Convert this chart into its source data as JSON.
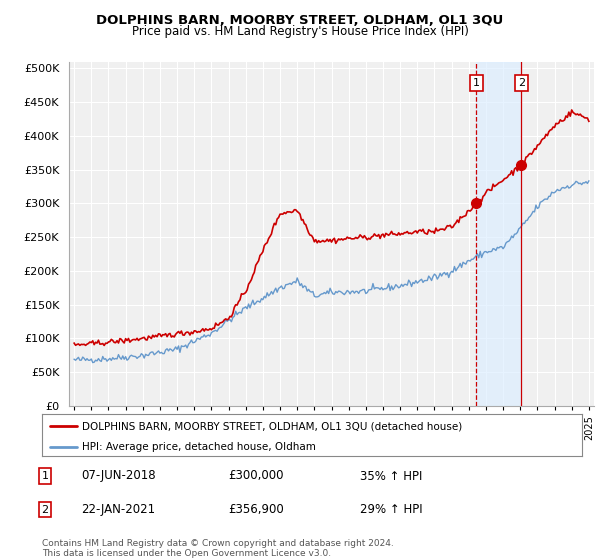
{
  "title": "DOLPHINS BARN, MOORBY STREET, OLDHAM, OL1 3QU",
  "subtitle": "Price paid vs. HM Land Registry's House Price Index (HPI)",
  "ylabel_ticks": [
    "£0",
    "£50K",
    "£100K",
    "£150K",
    "£200K",
    "£250K",
    "£300K",
    "£350K",
    "£400K",
    "£450K",
    "£500K"
  ],
  "ytick_values": [
    0,
    50000,
    100000,
    150000,
    200000,
    250000,
    300000,
    350000,
    400000,
    450000,
    500000
  ],
  "ylim": [
    0,
    510000
  ],
  "xlim_start": 1994.7,
  "xlim_end": 2025.3,
  "legend_line1": "DOLPHINS BARN, MOORBY STREET, OLDHAM, OL1 3QU (detached house)",
  "legend_line2": "HPI: Average price, detached house, Oldham",
  "sale1_date": "07-JUN-2018",
  "sale1_price": "£300,000",
  "sale1_pct": "35% ↑ HPI",
  "sale2_date": "22-JAN-2021",
  "sale2_price": "£356,900",
  "sale2_pct": "29% ↑ HPI",
  "footer": "Contains HM Land Registry data © Crown copyright and database right 2024.\nThis data is licensed under the Open Government Licence v3.0.",
  "red_color": "#cc0000",
  "blue_color": "#6699cc",
  "shade_color": "#ddeeff",
  "background_color": "#ffffff",
  "plot_bg_color": "#f0f0f0",
  "grid_color": "#ffffff",
  "sale1_x": 2018.44,
  "sale1_y": 300000,
  "sale2_x": 2021.06,
  "sale2_y": 356900
}
